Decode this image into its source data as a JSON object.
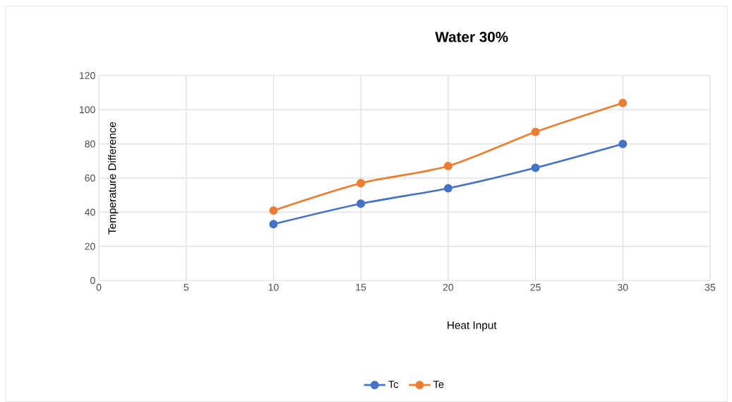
{
  "chart_data": {
    "type": "line",
    "title": "Water 30%",
    "xlabel": "Heat Input",
    "ylabel": "Temperature Difference",
    "x": [
      10,
      15,
      20,
      25,
      30
    ],
    "series": [
      {
        "name": "Tc",
        "color": "#4472c4",
        "values": [
          33,
          45,
          54,
          66,
          80
        ]
      },
      {
        "name": "Te",
        "color": "#ed7d31",
        "values": [
          41,
          57,
          67,
          87,
          104
        ]
      }
    ],
    "xlim": [
      0,
      35
    ],
    "ylim": [
      0,
      120
    ],
    "xticks": [
      0,
      5,
      10,
      15,
      20,
      25,
      30,
      35
    ],
    "yticks": [
      0,
      20,
      40,
      60,
      80,
      100,
      120
    ],
    "grid": true,
    "legend": "bottom",
    "marker": "circle",
    "line_style": "solid"
  }
}
